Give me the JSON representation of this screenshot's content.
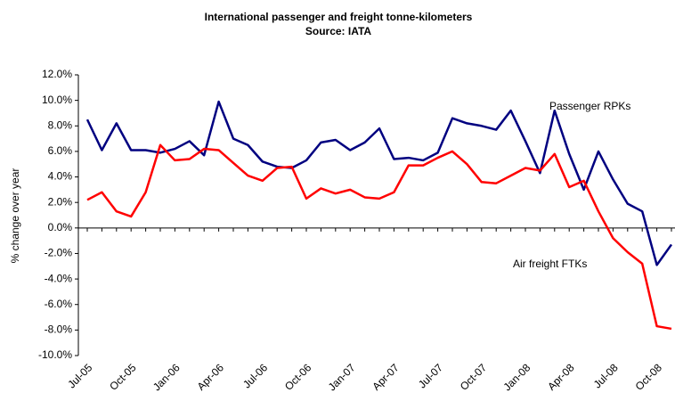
{
  "chart_data": {
    "type": "line",
    "title": "International passenger and freight tonne-kilometers",
    "subtitle": "Source: IATA",
    "ylabel": "% change over year",
    "categories": [
      "Jul-05",
      null,
      null,
      "Oct-05",
      null,
      null,
      "Jan-06",
      null,
      null,
      "Apr-06",
      null,
      null,
      "Jul-06",
      null,
      null,
      "Oct-06",
      null,
      null,
      "Jan-07",
      null,
      null,
      "Apr-07",
      null,
      null,
      "Jul-07",
      null,
      null,
      "Oct-07",
      null,
      null,
      "Jan-08",
      null,
      null,
      "Apr-08",
      null,
      null,
      "Jul-08",
      null,
      null,
      "Oct-08",
      null
    ],
    "series": [
      {
        "name": "Passenger RPKs",
        "color": "#000080",
        "values": [
          8.5,
          6.1,
          8.2,
          6.1,
          6.1,
          5.9,
          6.2,
          6.8,
          5.7,
          9.9,
          7.0,
          6.5,
          5.2,
          4.8,
          4.7,
          5.3,
          6.7,
          6.9,
          6.1,
          6.7,
          7.8,
          5.4,
          5.5,
          5.3,
          5.9,
          8.6,
          8.2,
          8.0,
          7.7,
          9.2,
          6.8,
          4.3,
          9.2,
          5.8,
          3.0,
          6.0,
          3.8,
          1.9,
          1.3,
          -2.9,
          -1.3
        ]
      },
      {
        "name": "Air freight FTKs",
        "color": "#ff0000",
        "values": [
          2.2,
          2.8,
          1.3,
          0.9,
          2.8,
          6.5,
          5.3,
          5.4,
          6.2,
          6.1,
          5.1,
          4.1,
          3.7,
          4.7,
          4.8,
          2.3,
          3.1,
          2.7,
          3.0,
          2.4,
          2.3,
          2.8,
          4.9,
          4.9,
          5.5,
          6.0,
          5.0,
          3.6,
          3.5,
          4.1,
          4.7,
          4.5,
          5.8,
          3.2,
          3.7,
          1.3,
          -0.8,
          -1.9,
          -2.8,
          -7.7,
          -7.9
        ]
      }
    ],
    "ylim": [
      -10,
      12
    ],
    "yticks": [
      {
        "value": -10,
        "label": "-10.0%"
      },
      {
        "value": -8,
        "label": "-8.0%"
      },
      {
        "value": -6,
        "label": "-6.0%"
      },
      {
        "value": -4,
        "label": "-4.0%"
      },
      {
        "value": -2,
        "label": "-2.0%"
      },
      {
        "value": 0,
        "label": "0.0%"
      },
      {
        "value": 2,
        "label": "2.0%"
      },
      {
        "value": 4,
        "label": "4.0%"
      },
      {
        "value": 6,
        "label": "6.0%"
      },
      {
        "value": 8,
        "label": "8.0%"
      },
      {
        "value": 10,
        "label": "10.0%"
      },
      {
        "value": 12,
        "label": "12.0%"
      }
    ],
    "grid": false
  }
}
